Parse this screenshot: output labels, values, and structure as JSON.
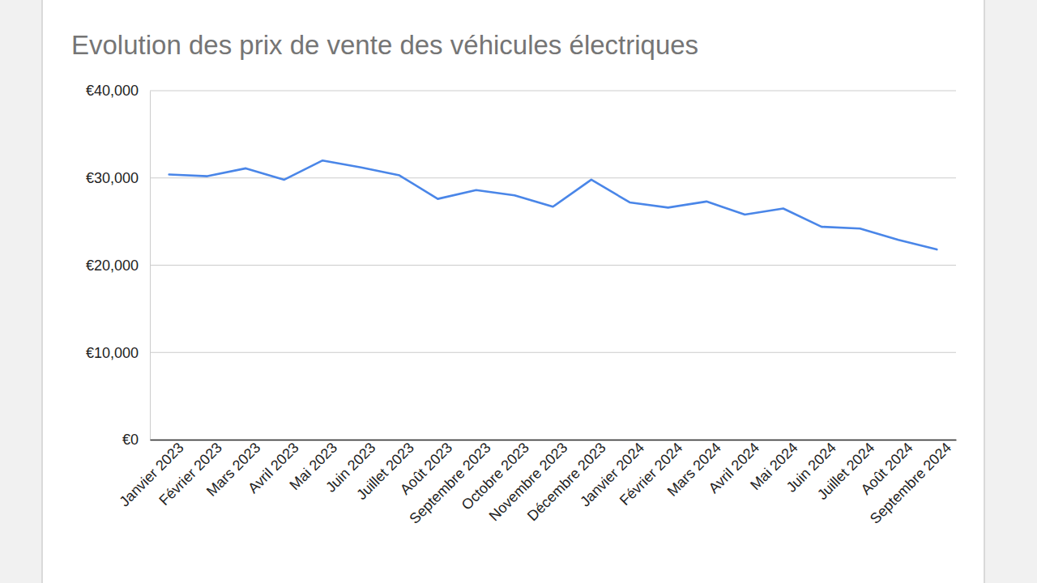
{
  "chart_data": {
    "type": "line",
    "title": "Evolution des prix de vente des véhicules électriques",
    "categories": [
      "Janvier 2023",
      "Février 2023",
      "Mars 2023",
      "Avril 2023",
      "Mai 2023",
      "Juin 2023",
      "Juillet 2023",
      "Août 2023",
      "Septembre 2023",
      "Octobre 2023",
      "Novembre 2023",
      "Décembre 2023",
      "Janvier 2024",
      "Février 2024",
      "Mars 2024",
      "Avril 2024",
      "Mai 2024",
      "Juin 2024",
      "Juillet 2024",
      "Août 2024",
      "Septembre 2024"
    ],
    "values": [
      30400,
      30200,
      31100,
      29800,
      32000,
      31200,
      30300,
      27600,
      28600,
      28000,
      26700,
      29800,
      27200,
      26600,
      27300,
      25800,
      26500,
      24400,
      24200,
      22900,
      21800
    ],
    "color": "#4a86e8",
    "ylim": [
      0,
      40000
    ],
    "yticks": [
      {
        "value": 0,
        "label": "€0"
      },
      {
        "value": 10000,
        "label": "€10,000"
      },
      {
        "value": 20000,
        "label": "€20,000"
      },
      {
        "value": 30000,
        "label": "€30,000"
      },
      {
        "value": 40000,
        "label": "€40,000"
      }
    ],
    "grid": true
  }
}
